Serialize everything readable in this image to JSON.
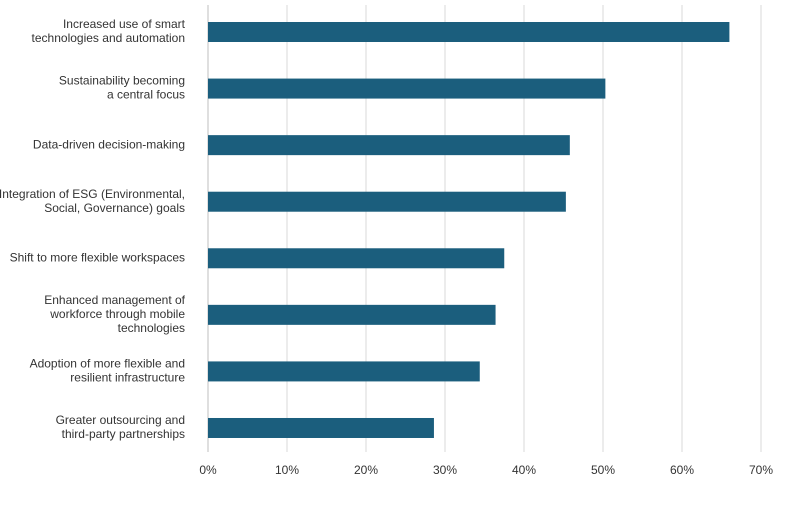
{
  "chart_data": {
    "type": "bar",
    "orientation": "horizontal",
    "title": "",
    "xlabel": "",
    "ylabel": "",
    "categories": [
      [
        "Increased use of smart",
        "technologies and automation"
      ],
      [
        "Sustainability becoming",
        "a central focus"
      ],
      [
        "Data-driven decision-making"
      ],
      [
        "Integration of ESG (Environmental,",
        "Social, Governance) goals"
      ],
      [
        "Shift to more flexible workspaces"
      ],
      [
        "Enhanced management of",
        "workforce through mobile",
        "technologies"
      ],
      [
        "Adoption of more flexible and",
        "resilient infrastructure"
      ],
      [
        "Greater outsourcing and",
        "third-party partnerships"
      ]
    ],
    "values": [
      66,
      50.3,
      45.8,
      45.3,
      37.5,
      36.4,
      34.4,
      28.6
    ],
    "xlim": [
      0,
      70
    ],
    "ticks": [
      0,
      10,
      20,
      30,
      40,
      50,
      60,
      70
    ],
    "tick_labels": [
      "0%",
      "10%",
      "20%",
      "30%",
      "40%",
      "50%",
      "60%",
      "70%"
    ],
    "grid": true,
    "legend": "none",
    "bar_color": "#1b5e7d"
  }
}
